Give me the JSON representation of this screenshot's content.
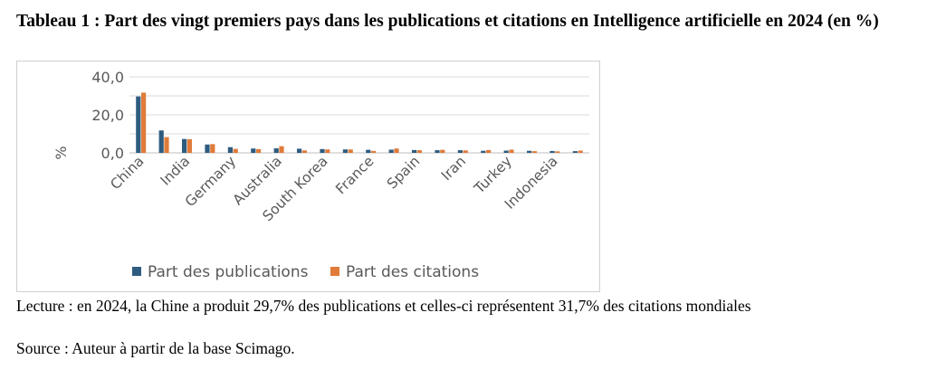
{
  "title": "Tableau 1 : Part des vingt premiers pays dans les publications et citations en Intelligence artificielle en 2024 (en %)",
  "note": "Lecture : en 2024, la Chine a produit 29,7% des publications et celles-ci représentent 31,7% des citations mondiales",
  "source": "Source : Auteur à partir de la base Scimago.",
  "chart_data": {
    "type": "bar",
    "title": "",
    "xlabel": "",
    "ylabel": "%",
    "ylim": [
      0,
      40
    ],
    "yticks": [
      "40,0",
      "20,0",
      "0,0"
    ],
    "grid": true,
    "legend_position": "bottom",
    "categories": [
      "China",
      "",
      "India",
      "",
      "Germany",
      "",
      "Australia",
      "",
      "South Korea",
      "",
      "France",
      "",
      "Spain",
      "",
      "Iran",
      "",
      "Turkey",
      "",
      "Indonesia",
      ""
    ],
    "series": [
      {
        "name": "Part des publications",
        "color": "#2e5c7f",
        "values": [
          29.7,
          11.8,
          7.3,
          4.4,
          3.0,
          2.3,
          2.4,
          2.2,
          2.0,
          1.8,
          1.6,
          1.7,
          1.5,
          1.4,
          1.4,
          1.1,
          1.2,
          1.1,
          1.0,
          0.9
        ]
      },
      {
        "name": "Part des citations",
        "color": "#e07b39",
        "values": [
          31.7,
          8.3,
          7.2,
          4.6,
          2.1,
          2.0,
          3.5,
          1.3,
          1.8,
          1.8,
          1.0,
          2.3,
          1.4,
          1.6,
          1.3,
          1.5,
          1.7,
          0.9,
          0.8,
          1.2
        ]
      }
    ]
  }
}
